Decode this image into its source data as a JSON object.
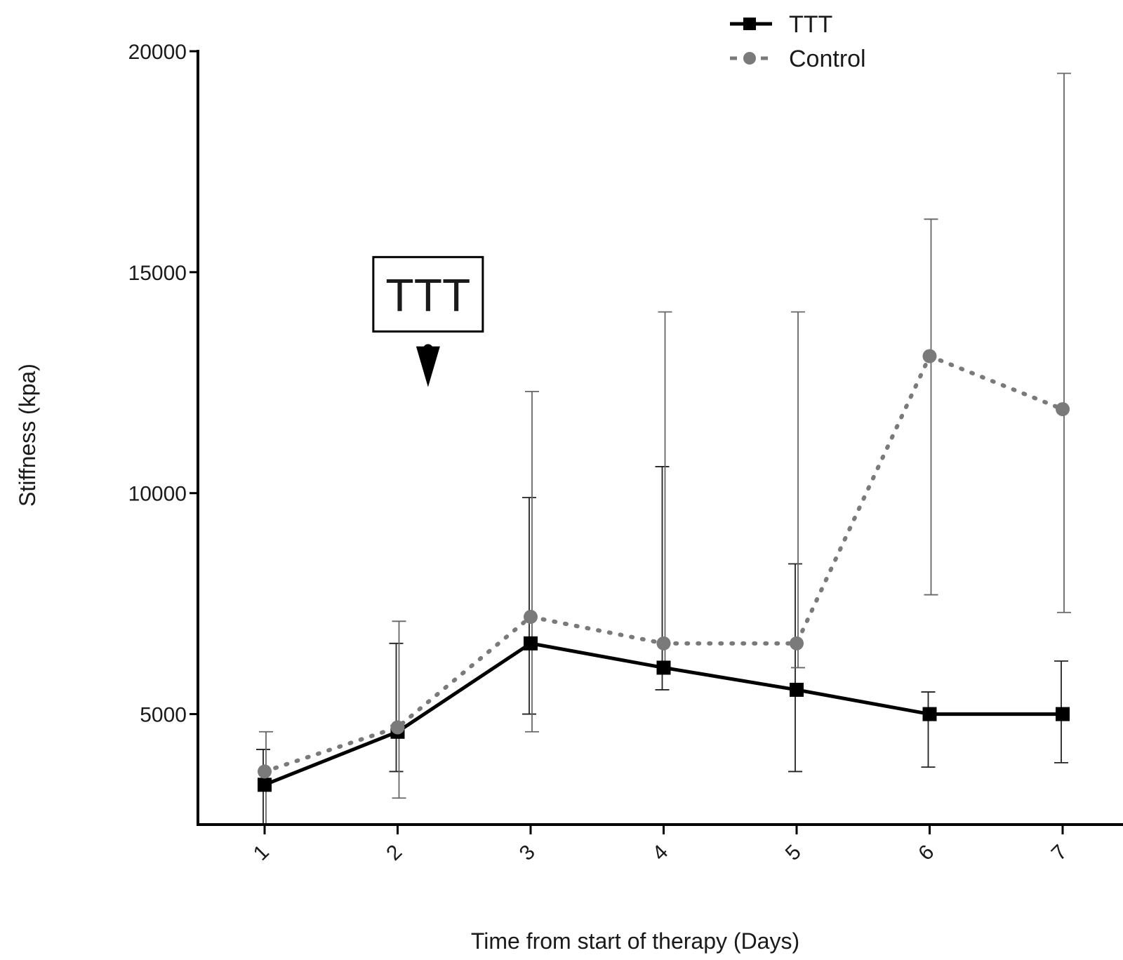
{
  "chart_data": {
    "type": "line",
    "title": "",
    "xlabel": "Time from start of therapy (Days)",
    "ylabel": "Stiffness (kpa)",
    "x": [
      1,
      2,
      3,
      4,
      5,
      6,
      7
    ],
    "x_tick_labels": [
      "1",
      "2",
      "3",
      "4",
      "5",
      "6",
      "7"
    ],
    "y_ticks": [
      5000,
      10000,
      15000,
      20000
    ],
    "y_tick_labels": [
      "5000",
      "10000",
      "15000",
      "20000"
    ],
    "ylim": [
      2500,
      20000
    ],
    "xlim": [
      0.5,
      7.5
    ],
    "grid": false,
    "legend_position": "top-right",
    "series": [
      {
        "name": "TTT",
        "style": "solid",
        "marker": "square",
        "color": "#000000",
        "values": [
          3400,
          4600,
          6600,
          6050,
          5550,
          5000,
          5000
        ],
        "error_low": [
          2500,
          3700,
          5000,
          5550,
          3700,
          3800,
          3900
        ],
        "error_high": [
          4200,
          6600,
          9900,
          10600,
          8400,
          5500,
          6200
        ]
      },
      {
        "name": "Control",
        "style": "dotted",
        "marker": "circle",
        "color": "#7a7a7a",
        "values": [
          3700,
          4700,
          7200,
          6600,
          6600,
          13100,
          11900
        ],
        "error_low": [
          2500,
          3100,
          4600,
          6050,
          6050,
          7700,
          7300
        ],
        "error_high": [
          4600,
          7100,
          12300,
          14100,
          14100,
          16200,
          19500
        ]
      }
    ],
    "annotations": [
      {
        "text": "TTT",
        "x": 2.25,
        "y": 14500,
        "boxed": true,
        "arrow_to_y": 12400
      }
    ]
  }
}
